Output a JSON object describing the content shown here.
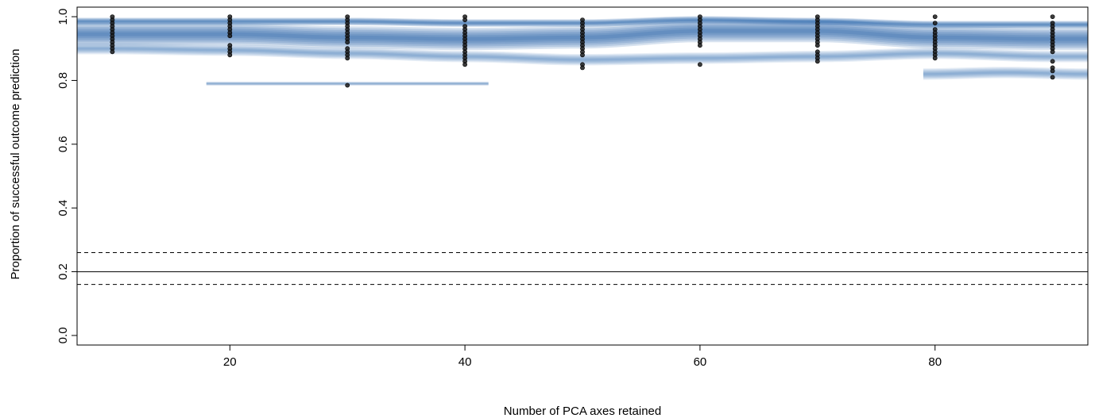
{
  "chart_data": {
    "type": "scatter",
    "title": "",
    "xlabel": "Number of PCA axes retained",
    "ylabel": "Proportion of successful outcome prediction",
    "xlim": [
      7,
      93
    ],
    "ylim": [
      -0.03,
      1.03
    ],
    "xticks": [
      20,
      40,
      60,
      80
    ],
    "yticks": [
      0.0,
      0.2,
      0.4,
      0.6,
      0.8,
      1.0
    ],
    "grid": false,
    "legend": "none",
    "reference_lines": [
      {
        "y": 0.2,
        "style": "solid"
      },
      {
        "y": 0.26,
        "style": "dashed"
      },
      {
        "y": 0.16,
        "style": "dashed"
      }
    ],
    "density_color": "#1f5fa8",
    "point_color": "#1a1a1a",
    "series": [
      {
        "x": 10,
        "values": [
          1.0,
          0.99,
          0.98,
          0.97,
          0.96,
          0.95,
          0.94,
          0.93,
          0.92,
          0.91,
          0.9,
          0.89
        ]
      },
      {
        "x": 20,
        "values": [
          1.0,
          0.99,
          0.98,
          0.97,
          0.96,
          0.95,
          0.94,
          0.91,
          0.9,
          0.89,
          0.88
        ]
      },
      {
        "x": 30,
        "values": [
          1.0,
          0.99,
          0.98,
          0.97,
          0.96,
          0.95,
          0.94,
          0.93,
          0.92,
          0.9,
          0.89,
          0.88,
          0.87,
          0.785
        ]
      },
      {
        "x": 40,
        "values": [
          1.0,
          0.99,
          0.97,
          0.96,
          0.95,
          0.94,
          0.93,
          0.92,
          0.91,
          0.9,
          0.89,
          0.88,
          0.87,
          0.86,
          0.85
        ]
      },
      {
        "x": 50,
        "values": [
          0.99,
          0.98,
          0.97,
          0.96,
          0.95,
          0.94,
          0.93,
          0.92,
          0.91,
          0.9,
          0.89,
          0.88,
          0.85,
          0.84
        ]
      },
      {
        "x": 60,
        "values": [
          1.0,
          0.99,
          0.98,
          0.97,
          0.96,
          0.95,
          0.94,
          0.93,
          0.92,
          0.91,
          0.85
        ]
      },
      {
        "x": 70,
        "values": [
          1.0,
          0.99,
          0.98,
          0.97,
          0.96,
          0.95,
          0.94,
          0.93,
          0.92,
          0.91,
          0.89,
          0.88,
          0.87,
          0.86
        ]
      },
      {
        "x": 80,
        "values": [
          1.0,
          0.98,
          0.96,
          0.95,
          0.94,
          0.93,
          0.92,
          0.91,
          0.9,
          0.89,
          0.88,
          0.87
        ]
      },
      {
        "x": 90,
        "values": [
          1.0,
          0.98,
          0.97,
          0.96,
          0.95,
          0.94,
          0.93,
          0.92,
          0.91,
          0.9,
          0.89,
          0.86,
          0.84,
          0.83,
          0.81
        ]
      }
    ],
    "density_bands": [
      {
        "x_from": 7,
        "x_to": 93,
        "y_centers": [
          0.945,
          0.945,
          0.935,
          0.93,
          0.935,
          0.955,
          0.955,
          0.935,
          0.93
        ],
        "x_centers": [
          10,
          20,
          30,
          40,
          50,
          60,
          70,
          80,
          90
        ],
        "spread": 0.035,
        "opacity": 0.95
      },
      {
        "x_from": 7,
        "x_to": 93,
        "y_centers": [
          0.985,
          0.985,
          0.985,
          0.98,
          0.98,
          0.99,
          0.985,
          0.975,
          0.975
        ],
        "x_centers": [
          10,
          20,
          30,
          40,
          50,
          60,
          70,
          80,
          90
        ],
        "spread": 0.012,
        "opacity": 0.9
      },
      {
        "x_from": 7,
        "x_to": 93,
        "y_centers": [
          0.9,
          0.895,
          0.885,
          0.875,
          0.865,
          0.87,
          0.875,
          0.885,
          0.875
        ],
        "x_centers": [
          10,
          20,
          30,
          40,
          50,
          60,
          70,
          80,
          90
        ],
        "spread": 0.018,
        "opacity": 0.55
      },
      {
        "x_from": 18,
        "x_to": 42,
        "y_centers": [
          0.79,
          0.79,
          0.79
        ],
        "x_centers": [
          18,
          30,
          42
        ],
        "spread": 0.006,
        "opacity": 0.6
      },
      {
        "x_from": 79,
        "x_to": 93,
        "y_centers": [
          0.82,
          0.825,
          0.82
        ],
        "x_centers": [
          79,
          86,
          93
        ],
        "spread": 0.018,
        "opacity": 0.55
      }
    ]
  }
}
